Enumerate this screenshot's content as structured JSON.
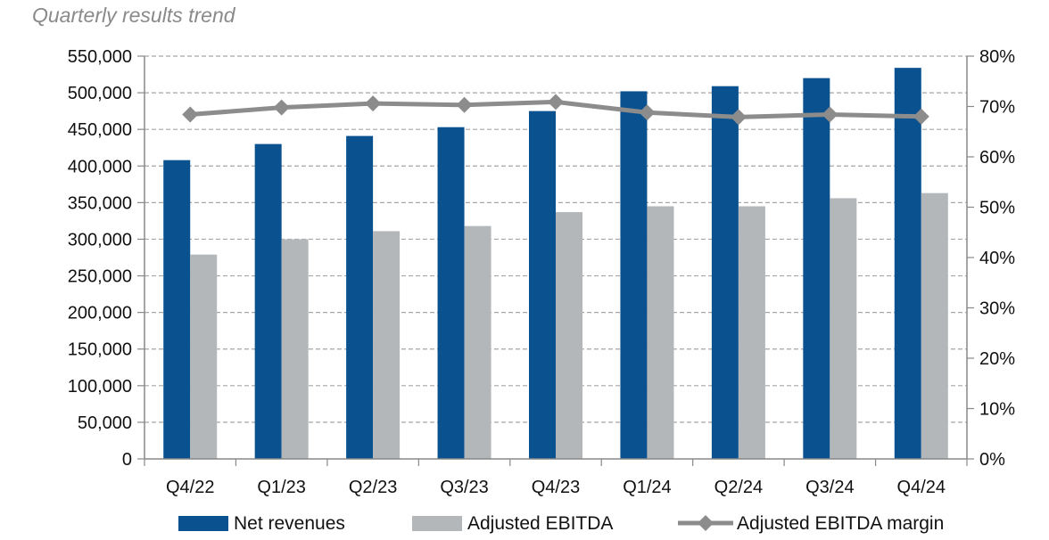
{
  "chart_data": {
    "type": "bar",
    "title": "Quarterly results trend",
    "categories": [
      "Q4/22",
      "Q1/23",
      "Q2/23",
      "Q3/23",
      "Q4/23",
      "Q1/24",
      "Q2/24",
      "Q3/24",
      "Q4/24"
    ],
    "series": [
      {
        "name": "Net revenues",
        "type": "bar",
        "axis": "left",
        "color": "#0a5190",
        "values": [
          408000,
          430000,
          441000,
          453000,
          475000,
          502000,
          509000,
          520000,
          534000
        ]
      },
      {
        "name": "Adjusted EBITDA",
        "type": "bar",
        "axis": "left",
        "color": "#b3b7b9",
        "values": [
          279000,
          300000,
          311000,
          318000,
          337000,
          345000,
          345000,
          356000,
          363000
        ]
      },
      {
        "name": "Adjusted EBITDA margin",
        "type": "line",
        "axis": "right",
        "color": "#8c8c8c",
        "marker": "diamond",
        "values": [
          68.4,
          69.8,
          70.6,
          70.3,
          70.9,
          68.8,
          67.9,
          68.4,
          68.0
        ]
      }
    ],
    "y_left": {
      "min": 0,
      "max": 550000,
      "step": 50000,
      "tick_labels": [
        "0",
        "50,000",
        "100,000",
        "150,000",
        "200,000",
        "250,000",
        "300,000",
        "350,000",
        "400,000",
        "450,000",
        "500,000",
        "550,000"
      ]
    },
    "y_right": {
      "min": 0,
      "max": 80,
      "step": 10,
      "tick_labels": [
        "0%",
        "10%",
        "20%",
        "30%",
        "40%",
        "50%",
        "60%",
        "70%",
        "80%"
      ]
    },
    "grid": "horizontal-dashed",
    "legend": "bottom"
  }
}
